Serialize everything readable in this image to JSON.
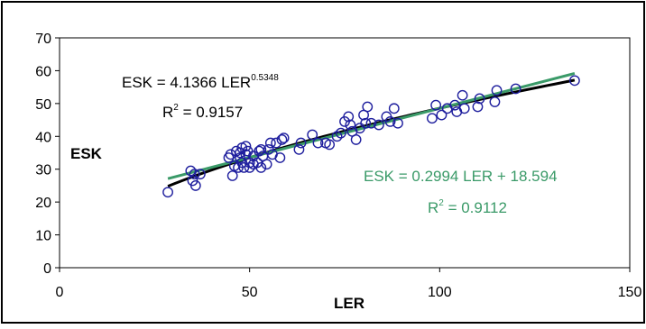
{
  "chart_data": {
    "type": "scatter",
    "xlabel": "LER",
    "ylabel": "ESK",
    "xlim": [
      0,
      150
    ],
    "ylim": [
      0,
      70
    ],
    "xticks": [
      0,
      50,
      100,
      150
    ],
    "yticks": [
      0,
      10,
      20,
      30,
      40,
      50,
      60,
      70
    ],
    "grid": false,
    "legend": "none",
    "colors": {
      "points": "#1f1f9e",
      "power_fit": "#000000",
      "linear_fit": "#3a9a68",
      "frame": "#000000"
    },
    "points": [
      [
        28.5,
        23.0
      ],
      [
        34.5,
        29.5
      ],
      [
        35.0,
        26.5
      ],
      [
        35.8,
        25.0
      ],
      [
        35.5,
        28.5
      ],
      [
        37.0,
        28.5
      ],
      [
        44.5,
        33.5
      ],
      [
        45.0,
        34.5
      ],
      [
        45.5,
        28.0
      ],
      [
        46.0,
        31.0
      ],
      [
        46.5,
        35.5
      ],
      [
        47.0,
        30.5
      ],
      [
        47.5,
        33.5
      ],
      [
        47.5,
        35.0
      ],
      [
        48.0,
        32.0
      ],
      [
        48.0,
        36.5
      ],
      [
        48.5,
        30.5
      ],
      [
        49.0,
        34.5
      ],
      [
        49.0,
        37.0
      ],
      [
        49.5,
        35.5
      ],
      [
        50.0,
        32.0
      ],
      [
        50.0,
        30.5
      ],
      [
        51.0,
        34.0
      ],
      [
        51.0,
        31.5
      ],
      [
        52.0,
        32.0
      ],
      [
        52.5,
        35.5
      ],
      [
        53.0,
        36.0
      ],
      [
        53.0,
        30.5
      ],
      [
        53.5,
        34.0
      ],
      [
        54.5,
        31.5
      ],
      [
        55.0,
        36.0
      ],
      [
        55.5,
        38.0
      ],
      [
        56.0,
        34.5
      ],
      [
        57.0,
        38.0
      ],
      [
        58.0,
        33.5
      ],
      [
        58.5,
        39.0
      ],
      [
        59.0,
        39.5
      ],
      [
        63.0,
        36.0
      ],
      [
        63.5,
        38.0
      ],
      [
        66.5,
        40.5
      ],
      [
        68.0,
        38.0
      ],
      [
        70.0,
        38.0
      ],
      [
        71.0,
        37.5
      ],
      [
        73.0,
        40.0
      ],
      [
        74.0,
        41.0
      ],
      [
        75.0,
        44.5
      ],
      [
        76.0,
        46.0
      ],
      [
        76.5,
        43.5
      ],
      [
        77.0,
        41.5
      ],
      [
        78.0,
        39.0
      ],
      [
        79.0,
        42.5
      ],
      [
        80.0,
        46.5
      ],
      [
        80.5,
        44.0
      ],
      [
        81.0,
        49.0
      ],
      [
        82.0,
        44.0
      ],
      [
        84.0,
        43.5
      ],
      [
        86.0,
        46.0
      ],
      [
        87.0,
        44.5
      ],
      [
        88.0,
        48.5
      ],
      [
        89.0,
        44.0
      ],
      [
        98.0,
        45.5
      ],
      [
        99.0,
        49.5
      ],
      [
        100.5,
        46.5
      ],
      [
        102.0,
        48.5
      ],
      [
        104.0,
        49.5
      ],
      [
        104.5,
        47.5
      ],
      [
        106.0,
        52.5
      ],
      [
        106.5,
        48.5
      ],
      [
        110.0,
        49.0
      ],
      [
        110.5,
        51.5
      ],
      [
        114.5,
        50.5
      ],
      [
        115.0,
        54.0
      ],
      [
        120.0,
        54.5
      ],
      [
        135.5,
        57.0
      ]
    ],
    "power_fit": {
      "coef": 4.1366,
      "exponent": 0.5348,
      "x_range": [
        28.5,
        135.5
      ]
    },
    "linear_fit": {
      "slope": 0.2994,
      "intercept": 18.594,
      "x_range": [
        28.5,
        135.5
      ]
    },
    "annotations": {
      "power": {
        "text": "ESK = 4.1366 LER",
        "sup": "0.5348",
        "r2_prefix": "R",
        "r2_sup": "2",
        "r2_value": " = 0.9157"
      },
      "linear": {
        "text": "ESK = 0.2994 LER + 18.594",
        "r2_prefix": "R",
        "r2_sup": "2",
        "r2_value": " = 0.9112"
      }
    }
  }
}
